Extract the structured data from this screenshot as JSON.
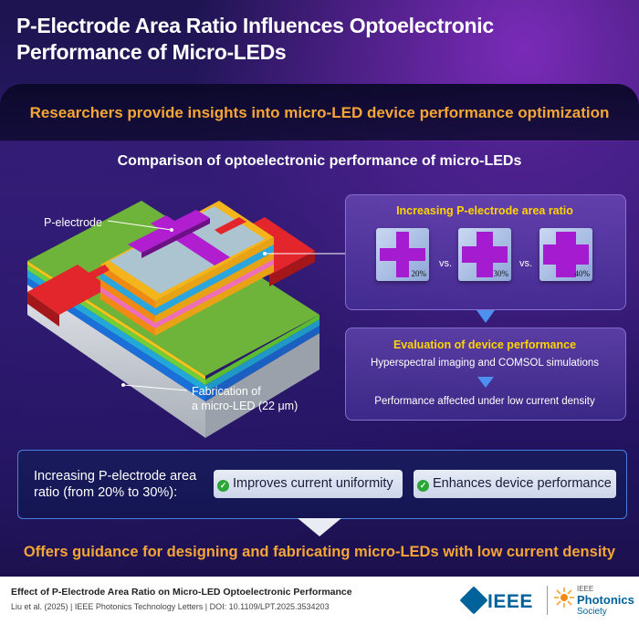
{
  "header": {
    "title_line1": "P-Electrode Area Ratio Influences Optoelectronic",
    "title_line2": "Performance of Micro-LEDs",
    "subtitle": "Researchers provide insights into micro-LED device performance optimization"
  },
  "comparison": {
    "heading": "Comparison of optoelectronic performance of micro-LEDs",
    "p_electrode_label": "P-electrode",
    "fabrication_label_line1": "Fabrication of",
    "fabrication_label_line2": "a micro-LED (22 μm)"
  },
  "panel_ratio": {
    "title": "Increasing P-electrode area ratio",
    "vs": "vs.",
    "items": [
      {
        "label": "20%",
        "ratio": 0.2
      },
      {
        "label": "30%",
        "ratio": 0.3
      },
      {
        "label": "40%",
        "ratio": 0.4
      }
    ]
  },
  "panel_eval": {
    "title": "Evaluation of device performance",
    "method": "Hyperspectral imaging and COMSOL simulations",
    "result": "Performance affected under low current density"
  },
  "summary": {
    "left_line1": "Increasing P-electrode area",
    "left_line2": "ratio (from 20% to 30%):",
    "benefit1": "Improves current uniformity",
    "benefit2": "Enhances device performance"
  },
  "conclusion": "Offers guidance for designing and fabricating micro-LEDs with low current density",
  "footer": {
    "article_title": "Effect of P-Electrode Area Ratio on Micro-LED Optoelectronic Performance",
    "citation": "Liu et al. (2025) | IEEE Photonics Technology Letters | DOI: 10.1109/LPT.2025.3534203",
    "ieee_logo": "IEEE",
    "society_line1": "IEEE",
    "society_line2": "Photonics",
    "society_line3": "Society"
  },
  "colors": {
    "accent_orange": "#f6a637",
    "accent_yellow": "#ffd400",
    "cross_purple": "#a51bd0",
    "check_green": "#2aa836",
    "ieee_blue": "#00629b"
  }
}
